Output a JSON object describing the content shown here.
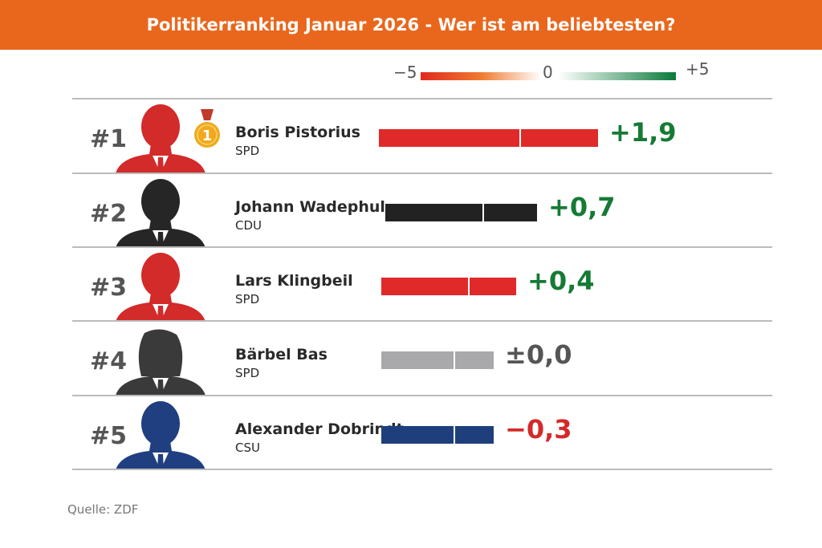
{
  "title": "Politikerranking Januar 2026 - Wer ist am beliebtesten?",
  "legend": {
    "min_label": "−5",
    "mid_label": "0",
    "max_label": "+5",
    "neg_color": "#e02a20",
    "pos_color": "#0a7a3a"
  },
  "chart_data": {
    "type": "bar",
    "title": "Politikerranking Januar 2026 - Wer ist am beliebtesten?",
    "scale": [
      -5,
      5
    ],
    "rows": [
      {
        "rank": "#1",
        "name": "Boris Pistorius",
        "party": "SPD",
        "value": 1.9,
        "label": "+1,9",
        "bar_color": "#e02a2a",
        "silhouette_color": "#d32a2a",
        "label_color": "#167a35",
        "medal": "1"
      },
      {
        "rank": "#2",
        "name": "Johann Wadephul",
        "party": "CDU",
        "value": 0.7,
        "label": "+0,7",
        "bar_color": "#222222",
        "silhouette_color": "#262626",
        "label_color": "#167a35"
      },
      {
        "rank": "#3",
        "name": "Lars Klingbeil",
        "party": "SPD",
        "value": 0.4,
        "label": "+0,4",
        "bar_color": "#e02a2a",
        "silhouette_color": "#d32a2a",
        "label_color": "#167a35"
      },
      {
        "rank": "#4",
        "name": "Bärbel Bas",
        "party": "SPD",
        "value": 0.0,
        "label": "±0,0",
        "bar_color": "#a9a9ab",
        "silhouette_color": "#3a3a3a",
        "label_color": "#555555"
      },
      {
        "rank": "#5",
        "name": "Alexander Dobrindt",
        "party": "CSU",
        "value": -0.3,
        "label": "−0,3",
        "bar_color": "#1f3f7c",
        "silhouette_color": "#1f3f80",
        "label_color": "#d42a2a"
      }
    ]
  },
  "source": "Quelle: ZDF"
}
